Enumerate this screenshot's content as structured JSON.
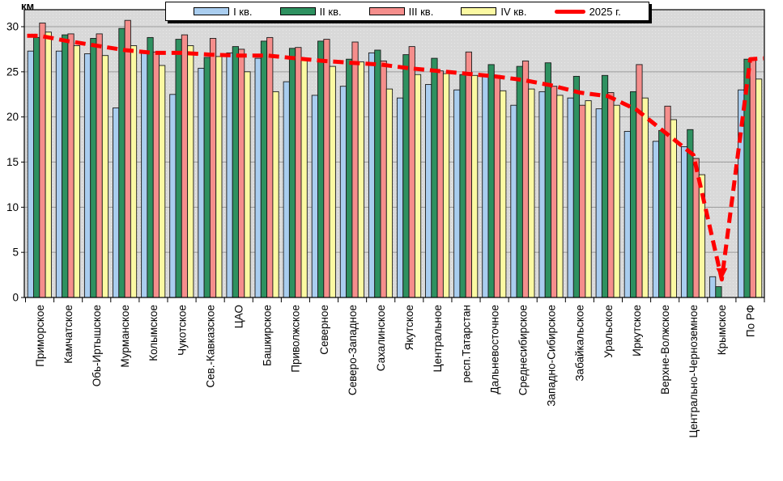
{
  "chart": {
    "y_axis_title": "км",
    "legend_items": [
      {
        "label": "I кв.",
        "color": "#A9CDEF",
        "kind": "swatch"
      },
      {
        "label": "II кв.",
        "color": "#2E9160",
        "kind": "swatch"
      },
      {
        "label": "III кв.",
        "color": "#F58E8C",
        "kind": "swatch"
      },
      {
        "label": "IV кв.",
        "color": "#FBF9A2",
        "kind": "swatch"
      },
      {
        "label": "2025 г.",
        "color": "#FF0000",
        "kind": "line"
      }
    ]
  },
  "chart_data": {
    "type": "bar",
    "title": "",
    "xlabel": "",
    "ylabel": "км",
    "ylim": [
      0,
      31.8
    ],
    "yticks": [
      0,
      5,
      10,
      15,
      20,
      25,
      30
    ],
    "grid": "horizontal",
    "legend_position": "top",
    "plot_bg": "#D9D9D9",
    "gridline_color": "#9A9A9A",
    "categories": [
      "Приморское",
      "Камчатское",
      "Обь-Иртышское",
      "Мурманское",
      "Колымское",
      "Чукотское",
      "Сев.-Кавказское",
      "ЦАО",
      "Башкирское",
      "Приволжское",
      "Северное",
      "Северо-Западное",
      "Сахалинское",
      "Якутское",
      "Центральное",
      "респ.Татарстан",
      "Дальневосточное",
      "Среднесибирское",
      "Западно-Сибирское",
      "Забайкальское",
      "Уральское",
      "Иркутское",
      "Верхне-Волжское",
      "Центрально-Черноземное",
      "Крымское",
      "По РФ"
    ],
    "series": [
      {
        "name": "I кв.",
        "type": "bar",
        "color": "#A9CDEF",
        "values": [
          27.3,
          27.3,
          27.0,
          21.0,
          27.1,
          22.5,
          25.4,
          27.1,
          26.5,
          23.9,
          22.4,
          23.4,
          27.1,
          22.1,
          23.6,
          23.0,
          24.7,
          21.3,
          22.8,
          22.1,
          20.9,
          18.4,
          17.3,
          16.7,
          2.3,
          23.0
        ]
      },
      {
        "name": "II кв.",
        "type": "bar",
        "color": "#2E9160",
        "values": [
          28.8,
          29.1,
          28.7,
          29.8,
          28.8,
          28.6,
          26.6,
          27.8,
          28.4,
          27.6,
          28.4,
          26.4,
          27.4,
          26.9,
          26.5,
          24.7,
          25.8,
          25.6,
          26.0,
          24.5,
          24.6,
          22.8,
          18.5,
          18.6,
          1.2,
          26.4
        ]
      },
      {
        "name": "III кв.",
        "type": "bar",
        "color": "#F58E8C",
        "values": [
          30.4,
          29.2,
          29.2,
          30.7,
          27.2,
          29.1,
          28.7,
          27.5,
          28.8,
          27.7,
          28.6,
          28.3,
          26.2,
          27.8,
          25.1,
          27.2,
          24.6,
          26.2,
          23.4,
          21.3,
          22.7,
          25.8,
          21.2,
          15.4,
          0,
          26.4
        ]
      },
      {
        "name": "IV кв.",
        "type": "bar",
        "color": "#FBF9A2",
        "values": [
          29.4,
          27.9,
          26.8,
          27.9,
          25.7,
          27.9,
          26.7,
          25.0,
          22.8,
          26.4,
          25.6,
          26.1,
          23.1,
          24.7,
          24.8,
          24.6,
          22.9,
          23.1,
          22.4,
          21.8,
          21.3,
          22.1,
          19.7,
          13.6,
          0,
          24.2
        ]
      },
      {
        "name": "2025 г.",
        "type": "line",
        "dashed": true,
        "color": "#FF0000",
        "values": [
          29.0,
          28.4,
          27.9,
          27.4,
          27.1,
          27.1,
          26.9,
          26.8,
          26.8,
          26.5,
          26.2,
          26.0,
          25.8,
          25.4,
          25.1,
          24.8,
          24.5,
          24.1,
          23.5,
          22.7,
          22.3,
          20.8,
          18.3,
          15.8,
          2.0,
          26.4
        ]
      }
    ]
  }
}
